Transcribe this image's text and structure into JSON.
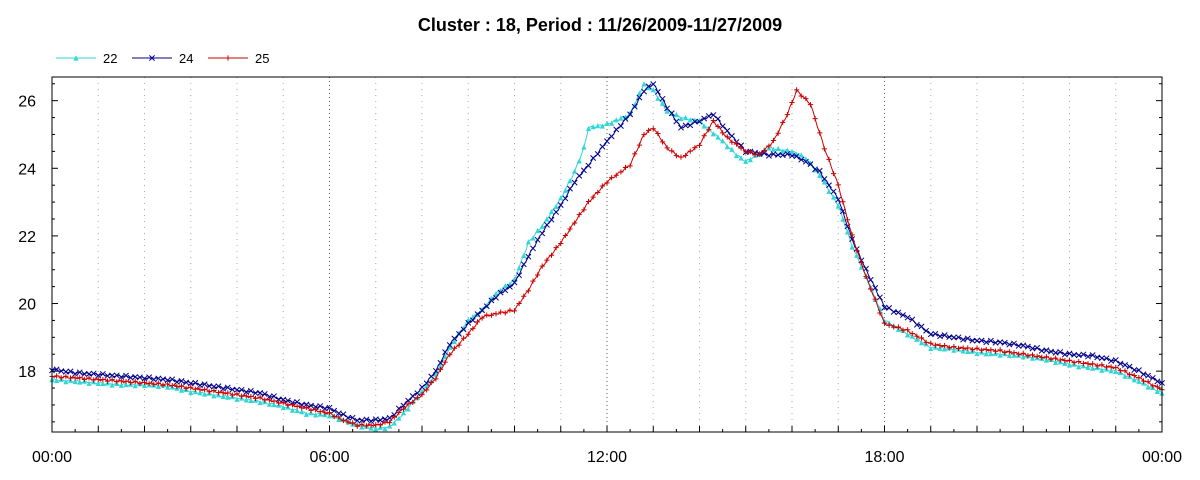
{
  "chart_data": {
    "type": "line",
    "title": "Cluster : 18, Period : 11/26/2009-11/27/2009",
    "xlabel": "",
    "ylabel": "",
    "x_unit": "hours",
    "xlim": [
      0,
      24
    ],
    "ylim": [
      16.2,
      26.7
    ],
    "grid": true,
    "legend_position": "top-left",
    "x_ticks": [
      {
        "value": 0,
        "label": "00:00"
      },
      {
        "value": 6,
        "label": "06:00"
      },
      {
        "value": 12,
        "label": "12:00"
      },
      {
        "value": 18,
        "label": "18:00"
      },
      {
        "value": 24,
        "label": "00:00"
      }
    ],
    "y_ticks": [
      {
        "value": 18,
        "label": "18"
      },
      {
        "value": 20,
        "label": "20"
      },
      {
        "value": 22,
        "label": "22"
      },
      {
        "value": 24,
        "label": "24"
      },
      {
        "value": 26,
        "label": "26"
      }
    ],
    "series": [
      {
        "name": "22",
        "color": "#33d6d6",
        "marker": "triangle",
        "points": [
          [
            0,
            17.75
          ],
          [
            0.5,
            17.7
          ],
          [
            1,
            17.65
          ],
          [
            1.5,
            17.6
          ],
          [
            2,
            17.6
          ],
          [
            2.5,
            17.55
          ],
          [
            3,
            17.4
          ],
          [
            3.5,
            17.3
          ],
          [
            4,
            17.2
          ],
          [
            4.5,
            17.1
          ],
          [
            5,
            16.95
          ],
          [
            5.5,
            16.75
          ],
          [
            6,
            16.7
          ],
          [
            6.3,
            16.55
          ],
          [
            6.6,
            16.4
          ],
          [
            7,
            16.3
          ],
          [
            7.3,
            16.35
          ],
          [
            7.6,
            16.75
          ],
          [
            8,
            17.4
          ],
          [
            8.3,
            17.9
          ],
          [
            8.6,
            18.7
          ],
          [
            9,
            19.5
          ],
          [
            9.3,
            19.8
          ],
          [
            9.6,
            20.3
          ],
          [
            10,
            20.7
          ],
          [
            10.3,
            21.8
          ],
          [
            10.6,
            22.3
          ],
          [
            11,
            23.1
          ],
          [
            11.3,
            23.9
          ],
          [
            11.5,
            24.6
          ],
          [
            11.6,
            25.2
          ],
          [
            12,
            25.3
          ],
          [
            12.5,
            25.6
          ],
          [
            12.8,
            26.5
          ],
          [
            13,
            26.3
          ],
          [
            13.3,
            25.7
          ],
          [
            13.6,
            25.5
          ],
          [
            14,
            25.4
          ],
          [
            14.5,
            24.8
          ],
          [
            14.8,
            24.4
          ],
          [
            15,
            24.2
          ],
          [
            15.5,
            24.6
          ],
          [
            16,
            24.5
          ],
          [
            16.3,
            24.3
          ],
          [
            16.6,
            23.8
          ],
          [
            17,
            22.9
          ],
          [
            17.3,
            21.7
          ],
          [
            17.6,
            20.8
          ],
          [
            18,
            19.5
          ],
          [
            18.5,
            19.1
          ],
          [
            19,
            18.7
          ],
          [
            19.5,
            18.65
          ],
          [
            20,
            18.55
          ],
          [
            20.5,
            18.5
          ],
          [
            21,
            18.45
          ],
          [
            21.5,
            18.35
          ],
          [
            22,
            18.2
          ],
          [
            22.5,
            18.1
          ],
          [
            23,
            18.0
          ],
          [
            23.5,
            17.7
          ],
          [
            24,
            17.35
          ]
        ]
      },
      {
        "name": "24",
        "color": "#00008b",
        "marker": "x",
        "points": [
          [
            0,
            18.05
          ],
          [
            0.5,
            17.95
          ],
          [
            1,
            17.9
          ],
          [
            1.5,
            17.85
          ],
          [
            2,
            17.8
          ],
          [
            2.5,
            17.75
          ],
          [
            3,
            17.65
          ],
          [
            3.5,
            17.55
          ],
          [
            4,
            17.45
          ],
          [
            4.5,
            17.35
          ],
          [
            5,
            17.15
          ],
          [
            5.5,
            17.0
          ],
          [
            6,
            16.9
          ],
          [
            6.3,
            16.7
          ],
          [
            6.6,
            16.55
          ],
          [
            7,
            16.55
          ],
          [
            7.3,
            16.6
          ],
          [
            7.6,
            17.0
          ],
          [
            8,
            17.5
          ],
          [
            8.3,
            18.0
          ],
          [
            8.6,
            18.8
          ],
          [
            9,
            19.4
          ],
          [
            9.3,
            19.8
          ],
          [
            9.6,
            20.2
          ],
          [
            10,
            20.6
          ],
          [
            10.3,
            21.4
          ],
          [
            10.6,
            22.1
          ],
          [
            11,
            22.9
          ],
          [
            11.3,
            23.6
          ],
          [
            11.6,
            24.1
          ],
          [
            12,
            24.8
          ],
          [
            12.5,
            25.6
          ],
          [
            12.8,
            26.3
          ],
          [
            13,
            26.5
          ],
          [
            13.3,
            25.8
          ],
          [
            13.6,
            25.2
          ],
          [
            14,
            25.4
          ],
          [
            14.3,
            25.6
          ],
          [
            14.6,
            25.1
          ],
          [
            15,
            24.5
          ],
          [
            15.5,
            24.4
          ],
          [
            16,
            24.4
          ],
          [
            16.3,
            24.2
          ],
          [
            16.6,
            23.9
          ],
          [
            17,
            23.1
          ],
          [
            17.3,
            21.9
          ],
          [
            17.6,
            21.0
          ],
          [
            18,
            19.9
          ],
          [
            18.5,
            19.6
          ],
          [
            19,
            19.1
          ],
          [
            19.5,
            19.0
          ],
          [
            20,
            18.9
          ],
          [
            20.5,
            18.85
          ],
          [
            21,
            18.75
          ],
          [
            21.5,
            18.6
          ],
          [
            22,
            18.5
          ],
          [
            22.5,
            18.45
          ],
          [
            23,
            18.3
          ],
          [
            23.5,
            18.0
          ],
          [
            24,
            17.65
          ]
        ]
      },
      {
        "name": "25",
        "color": "#cc0000",
        "marker": "plus",
        "points": [
          [
            0,
            17.85
          ],
          [
            0.5,
            17.8
          ],
          [
            1,
            17.75
          ],
          [
            1.5,
            17.7
          ],
          [
            2,
            17.65
          ],
          [
            2.5,
            17.6
          ],
          [
            3,
            17.5
          ],
          [
            3.5,
            17.4
          ],
          [
            4,
            17.3
          ],
          [
            4.5,
            17.2
          ],
          [
            5,
            17.05
          ],
          [
            5.5,
            16.9
          ],
          [
            6,
            16.75
          ],
          [
            6.3,
            16.55
          ],
          [
            6.6,
            16.4
          ],
          [
            7,
            16.4
          ],
          [
            7.3,
            16.5
          ],
          [
            7.6,
            16.9
          ],
          [
            8,
            17.3
          ],
          [
            8.3,
            17.8
          ],
          [
            8.6,
            18.5
          ],
          [
            9,
            19.1
          ],
          [
            9.3,
            19.6
          ],
          [
            9.6,
            19.7
          ],
          [
            10,
            19.8
          ],
          [
            10.3,
            20.4
          ],
          [
            10.6,
            21.1
          ],
          [
            11,
            21.8
          ],
          [
            11.3,
            22.4
          ],
          [
            11.6,
            23.0
          ],
          [
            12,
            23.6
          ],
          [
            12.5,
            24.1
          ],
          [
            12.8,
            25.0
          ],
          [
            13,
            25.2
          ],
          [
            13.3,
            24.6
          ],
          [
            13.6,
            24.3
          ],
          [
            14,
            24.7
          ],
          [
            14.3,
            25.4
          ],
          [
            14.6,
            24.9
          ],
          [
            15,
            24.5
          ],
          [
            15.3,
            24.4
          ],
          [
            15.6,
            24.8
          ],
          [
            15.9,
            25.6
          ],
          [
            16.1,
            26.3
          ],
          [
            16.4,
            25.9
          ],
          [
            16.7,
            24.6
          ],
          [
            17,
            23.5
          ],
          [
            17.3,
            22.0
          ],
          [
            17.6,
            20.8
          ],
          [
            18,
            19.4
          ],
          [
            18.5,
            19.2
          ],
          [
            19,
            18.8
          ],
          [
            19.5,
            18.7
          ],
          [
            20,
            18.65
          ],
          [
            20.5,
            18.6
          ],
          [
            21,
            18.5
          ],
          [
            21.5,
            18.4
          ],
          [
            22,
            18.3
          ],
          [
            22.5,
            18.2
          ],
          [
            23,
            18.1
          ],
          [
            23.5,
            17.8
          ],
          [
            24,
            17.45
          ]
        ]
      }
    ]
  }
}
